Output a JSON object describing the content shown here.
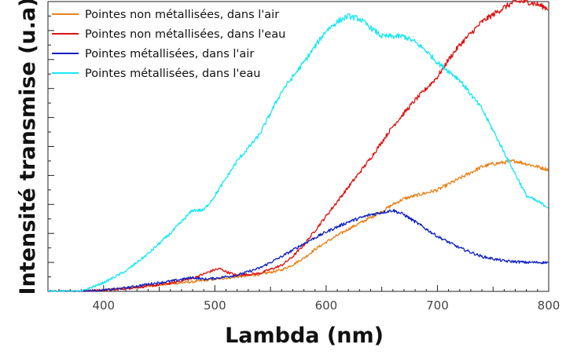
{
  "chart_data": {
    "type": "line",
    "title": "",
    "xlabel": "Lambda (nm)",
    "ylabel": "Intensité transmise (u.a)",
    "xlim": [
      350,
      800
    ],
    "ylim": [
      0,
      1.0
    ],
    "x_ticks": [
      400,
      500,
      600,
      700,
      800
    ],
    "y_ticks": [
      0.1,
      0.2,
      0.3,
      0.4,
      0.5,
      0.6,
      0.7,
      0.8,
      0.9,
      1.0
    ],
    "y_tick_labels_shown": false,
    "grid": false,
    "legend_position": "top-left",
    "series": [
      {
        "name": "Pointes non métallisées, dans l'air",
        "color": "#e8821a",
        "x": [
          350,
          380,
          400,
          420,
          440,
          460,
          480,
          500,
          520,
          540,
          560,
          570,
          580,
          590,
          600,
          620,
          640,
          650,
          660,
          670,
          680,
          690,
          700,
          710,
          720,
          730,
          740,
          750,
          760,
          770,
          780,
          790,
          800
        ],
        "y": [
          0,
          0,
          0.004,
          0.01,
          0.018,
          0.026,
          0.033,
          0.042,
          0.05,
          0.058,
          0.074,
          0.092,
          0.115,
          0.145,
          0.17,
          0.215,
          0.255,
          0.275,
          0.3,
          0.32,
          0.33,
          0.34,
          0.35,
          0.37,
          0.39,
          0.41,
          0.43,
          0.44,
          0.445,
          0.45,
          0.44,
          0.43,
          0.42
        ]
      },
      {
        "name": "Pointes non métallisées, dans l'eau",
        "color": "#dd1111",
        "x": [
          350,
          380,
          400,
          420,
          440,
          460,
          480,
          490,
          500,
          505,
          510,
          520,
          540,
          560,
          570,
          580,
          600,
          620,
          640,
          660,
          680,
          700,
          710,
          720,
          740,
          760,
          770,
          780,
          790,
          800
        ],
        "y": [
          0,
          0,
          0.004,
          0.01,
          0.018,
          0.028,
          0.045,
          0.06,
          0.075,
          0.078,
          0.068,
          0.055,
          0.062,
          0.09,
          0.12,
          0.16,
          0.26,
          0.36,
          0.46,
          0.57,
          0.66,
          0.74,
          0.8,
          0.85,
          0.93,
          0.98,
          1.0,
          1.0,
          0.99,
          0.975
        ]
      },
      {
        "name": "Pointes métallisées, dans l'air",
        "color": "#1020c0",
        "x": [
          350,
          380,
          400,
          420,
          440,
          460,
          480,
          490,
          500,
          520,
          540,
          560,
          580,
          600,
          620,
          640,
          660,
          670,
          680,
          700,
          720,
          740,
          760,
          780,
          800
        ],
        "y": [
          0,
          0,
          0.004,
          0.012,
          0.025,
          0.035,
          0.048,
          0.042,
          0.045,
          0.056,
          0.08,
          0.12,
          0.165,
          0.205,
          0.24,
          0.265,
          0.28,
          0.265,
          0.24,
          0.19,
          0.15,
          0.12,
          0.105,
          0.1,
          0.1
        ]
      },
      {
        "name": "Pointes métallisées, dans l'eau",
        "color": "#18e8f0",
        "x": [
          350,
          365,
          380,
          400,
          420,
          440,
          460,
          480,
          490,
          500,
          520,
          540,
          560,
          580,
          600,
          610,
          620,
          630,
          640,
          650,
          660,
          670,
          680,
          690,
          700,
          720,
          740,
          760,
          780,
          800
        ],
        "y": [
          0,
          0,
          0,
          0.03,
          0.07,
          0.13,
          0.2,
          0.28,
          0.28,
          0.33,
          0.45,
          0.54,
          0.69,
          0.79,
          0.9,
          0.93,
          0.95,
          0.94,
          0.91,
          0.88,
          0.88,
          0.88,
          0.86,
          0.83,
          0.79,
          0.73,
          0.63,
          0.48,
          0.33,
          0.29
        ]
      }
    ]
  }
}
